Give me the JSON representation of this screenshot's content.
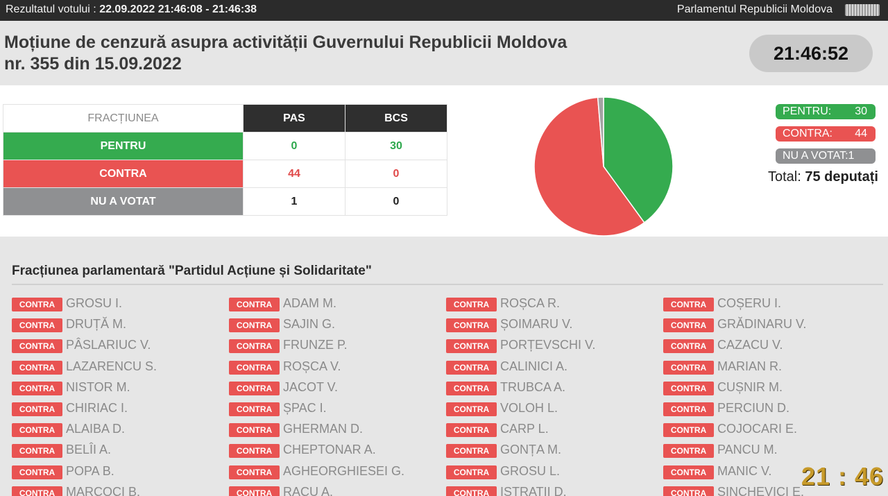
{
  "topbar": {
    "left_label": "Rezultatul votului : ",
    "left_value": "22.09.2022 21:46:08 - 21:46:38",
    "right_label": "Parlamentul Republicii Moldova"
  },
  "header": {
    "title_line1": "Moțiune de cenzură asupra activității Guvernului Republicii Moldova",
    "title_line2": "nr. 355 din 15.09.2022",
    "clock": "21:46:52"
  },
  "results_table": {
    "header_fraction": "FRACȚIUNEA",
    "parties": [
      "PAS",
      "BCS"
    ],
    "rows": [
      {
        "label": "PENTRU",
        "values": [
          "0",
          "30"
        ]
      },
      {
        "label": "CONTRA",
        "values": [
          "44",
          "0"
        ]
      },
      {
        "label": "NU A VOTAT",
        "values": [
          "1",
          "0"
        ]
      }
    ]
  },
  "chart_data": {
    "type": "pie",
    "slices": [
      {
        "label": "PENTRU",
        "value": 30,
        "color": "#35ab4f"
      },
      {
        "label": "CONTRA",
        "value": 44,
        "color": "#e95352"
      },
      {
        "label": "NU A VOTAT",
        "value": 1,
        "color": "#a3a3a3"
      }
    ]
  },
  "legend": {
    "pentru_label": "PENTRU:",
    "pentru_value": "30",
    "contra_label": "CONTRA:",
    "contra_value": "44",
    "nuavotat_label": "NU A VOTAT:1",
    "total_label": "Total: ",
    "total_value": "75 deputați"
  },
  "section": {
    "title": "Fracțiunea parlamentară \"Partidul Acțiune și Solidaritate\""
  },
  "vote_badge": "CONTRA",
  "deputies": [
    [
      "GROSU I.",
      "DRUȚĂ M.",
      "PÂSLARIUC V.",
      "LAZARENCU S.",
      "NISTOR M.",
      "CHIRIAC I.",
      "ALAIBA D.",
      "BELÎI A.",
      "POPA B.",
      "MARCOCI B."
    ],
    [
      "ADAM M.",
      "SAJIN G.",
      "FRUNZE P.",
      "ROȘCA V.",
      "JACOT V.",
      "ȘPAC I.",
      "GHERMAN D.",
      "CHEPTONAR A.",
      "AGHEORGHIESEI G.",
      "RACU A."
    ],
    [
      "ROȘCA R.",
      "ȘOIMARU V.",
      "PORȚEVSCHI V.",
      "CALINICI A.",
      "TRUBCA A.",
      "VOLOH L.",
      "CARP L.",
      "GONȚA M.",
      "GROSU L.",
      "ISTRATII D."
    ],
    [
      "COȘERU I.",
      "GRĂDINARU V.",
      "CAZACU V.",
      "MARIAN R.",
      "CUȘNIR M.",
      "PERCIUN D.",
      "COJOCARI E.",
      "PANCU M.",
      "MANIC V.",
      "SINCHEVICI E."
    ]
  ],
  "corner_clock": "21 : 46"
}
